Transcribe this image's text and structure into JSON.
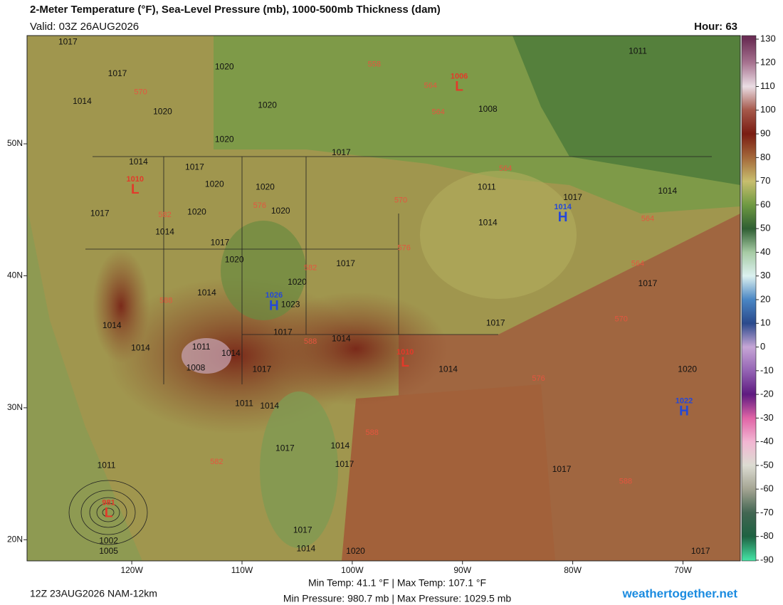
{
  "header": {
    "title": "2-Meter Temperature (°F), Sea-Level Pressure (mb), 1000-500mb Thickness (dam)",
    "valid": "Valid: 03Z 26AUG2026",
    "hour": "Hour: 63"
  },
  "map": {
    "xlim": [
      -129.5,
      -64.8
    ],
    "ylim": [
      18.4,
      58.2
    ],
    "xticks": [
      {
        "value": -120,
        "label": "120W"
      },
      {
        "value": -110,
        "label": "110W"
      },
      {
        "value": -100,
        "label": "100W"
      },
      {
        "value": -90,
        "label": "90W"
      },
      {
        "value": -80,
        "label": "80W"
      },
      {
        "value": -70,
        "label": "70W"
      }
    ],
    "yticks": [
      {
        "value": 50,
        "label": "50N"
      },
      {
        "value": 40,
        "label": "40N"
      },
      {
        "value": 30,
        "label": "30N"
      },
      {
        "value": 20,
        "label": "20N"
      }
    ],
    "centers": [
      {
        "type": "L",
        "value": 1010,
        "lon": -119.7,
        "lat": 46.6,
        "color": "#e23a2a"
      },
      {
        "type": "L",
        "value": 1006,
        "lon": -90.3,
        "lat": 54.4,
        "color": "#e23a2a"
      },
      {
        "type": "H",
        "value": 1014,
        "lon": -80.9,
        "lat": 44.5,
        "color": "#2448d8"
      },
      {
        "type": "H",
        "value": 1026,
        "lon": -107.1,
        "lat": 37.8,
        "color": "#2448d8"
      },
      {
        "type": "L",
        "value": 1010,
        "lon": -95.2,
        "lat": 33.5,
        "color": "#e23a2a"
      },
      {
        "type": "H",
        "value": 1022,
        "lon": -69.9,
        "lat": 29.8,
        "color": "#2448d8"
      },
      {
        "type": "L",
        "value": 981,
        "lon": -122.1,
        "lat": 22.1,
        "color": "#e23a2a"
      }
    ],
    "isobar_labels": [
      {
        "label": 1017,
        "lon": -125.8,
        "lat": 57.7
      },
      {
        "label": 1017,
        "lon": -121.3,
        "lat": 55.3
      },
      {
        "label": 1014,
        "lon": -124.5,
        "lat": 53.2
      },
      {
        "label": 1020,
        "lon": -117.2,
        "lat": 52.4
      },
      {
        "label": 1020,
        "lon": -111.6,
        "lat": 55.8
      },
      {
        "label": 1020,
        "lon": -107.7,
        "lat": 52.9
      },
      {
        "label": 1020,
        "lon": -111.6,
        "lat": 50.3
      },
      {
        "label": 1017,
        "lon": -101.0,
        "lat": 49.3
      },
      {
        "label": 1014,
        "lon": -119.4,
        "lat": 48.6
      },
      {
        "label": 1017,
        "lon": -114.3,
        "lat": 48.2
      },
      {
        "label": 1020,
        "lon": -112.5,
        "lat": 46.9
      },
      {
        "label": 1020,
        "lon": -107.9,
        "lat": 46.7
      },
      {
        "label": 1020,
        "lon": -106.5,
        "lat": 44.9
      },
      {
        "label": 1017,
        "lon": -122.9,
        "lat": 44.7
      },
      {
        "label": 1020,
        "lon": -114.1,
        "lat": 44.8
      },
      {
        "label": 1014,
        "lon": -117.0,
        "lat": 43.3
      },
      {
        "label": 1017,
        "lon": -112.0,
        "lat": 42.5
      },
      {
        "label": 1020,
        "lon": -110.7,
        "lat": 41.2
      },
      {
        "label": 1017,
        "lon": -100.6,
        "lat": 40.9
      },
      {
        "label": 1014,
        "lon": -113.2,
        "lat": 38.7
      },
      {
        "label": 1020,
        "lon": -105.0,
        "lat": 39.5
      },
      {
        "label": 1023,
        "lon": -105.6,
        "lat": 37.8
      },
      {
        "label": 1014,
        "lon": -121.8,
        "lat": 36.2
      },
      {
        "label": 1017,
        "lon": -106.3,
        "lat": 35.7
      },
      {
        "label": 1014,
        "lon": -119.2,
        "lat": 34.5
      },
      {
        "label": 1011,
        "lon": -113.7,
        "lat": 34.6
      },
      {
        "label": 1008,
        "lon": -114.2,
        "lat": 33.0
      },
      {
        "label": 1014,
        "lon": -111.0,
        "lat": 34.1
      },
      {
        "label": 1017,
        "lon": -108.2,
        "lat": 32.9
      },
      {
        "label": 1014,
        "lon": -101.0,
        "lat": 35.2
      },
      {
        "label": 1014,
        "lon": -91.3,
        "lat": 32.9
      },
      {
        "label": 1017,
        "lon": -87.0,
        "lat": 36.4
      },
      {
        "label": 1008,
        "lon": -87.7,
        "lat": 52.6
      },
      {
        "label": 1011,
        "lon": -87.8,
        "lat": 46.7
      },
      {
        "label": 1014,
        "lon": -87.7,
        "lat": 44.0
      },
      {
        "label": 1017,
        "lon": -80.0,
        "lat": 45.9
      },
      {
        "label": 1011,
        "lon": -74.1,
        "lat": 57.0
      },
      {
        "label": 1014,
        "lon": -71.4,
        "lat": 46.4
      },
      {
        "label": 1017,
        "lon": -73.2,
        "lat": 39.4
      },
      {
        "label": 1020,
        "lon": -69.6,
        "lat": 32.9
      },
      {
        "label": 1011,
        "lon": -109.8,
        "lat": 30.3
      },
      {
        "label": 1014,
        "lon": -107.5,
        "lat": 30.1
      },
      {
        "label": 1017,
        "lon": -106.1,
        "lat": 26.9
      },
      {
        "label": 1014,
        "lon": -101.1,
        "lat": 27.1
      },
      {
        "label": 1017,
        "lon": -100.7,
        "lat": 25.7
      },
      {
        "label": 1011,
        "lon": -122.3,
        "lat": 25.6
      },
      {
        "label": 1002,
        "lon": -122.1,
        "lat": 19.9
      },
      {
        "label": 1005,
        "lon": -122.1,
        "lat": 19.1
      },
      {
        "label": 1017,
        "lon": -104.5,
        "lat": 20.7
      },
      {
        "label": 1014,
        "lon": -104.2,
        "lat": 19.3
      },
      {
        "label": 1020,
        "lon": -99.7,
        "lat": 19.1
      },
      {
        "label": 1017,
        "lon": -81.0,
        "lat": 25.3
      },
      {
        "label": 1017,
        "lon": -68.4,
        "lat": 19.1
      }
    ],
    "thickness_labels": [
      {
        "label": 558,
        "lon": -98.0,
        "lat": 56.0
      },
      {
        "label": 570,
        "lon": -119.2,
        "lat": 53.9
      },
      {
        "label": 564,
        "lon": -92.9,
        "lat": 54.4
      },
      {
        "label": 564,
        "lon": -92.2,
        "lat": 52.4
      },
      {
        "label": 564,
        "lon": -86.1,
        "lat": 48.1
      },
      {
        "label": 570,
        "lon": -95.6,
        "lat": 45.7
      },
      {
        "label": 576,
        "lon": -108.4,
        "lat": 45.3
      },
      {
        "label": 582,
        "lon": -117.0,
        "lat": 44.6
      },
      {
        "label": 576,
        "lon": -95.3,
        "lat": 42.1
      },
      {
        "label": 582,
        "lon": -103.8,
        "lat": 40.6
      },
      {
        "label": 588,
        "lon": -116.9,
        "lat": 38.1
      },
      {
        "label": 588,
        "lon": -103.8,
        "lat": 35.0
      },
      {
        "label": 588,
        "lon": -98.2,
        "lat": 28.1
      },
      {
        "label": 582,
        "lon": -112.3,
        "lat": 25.9
      },
      {
        "label": 576,
        "lon": -83.1,
        "lat": 32.2
      },
      {
        "label": 570,
        "lon": -75.6,
        "lat": 36.7
      },
      {
        "label": 564,
        "lon": -73.2,
        "lat": 44.3
      },
      {
        "label": 564,
        "lon": -74.1,
        "lat": 40.9
      },
      {
        "label": 588,
        "lon": -75.2,
        "lat": 24.4
      }
    ]
  },
  "colorbar": {
    "lim": [
      -90.3,
      131.5
    ],
    "ticks": [
      130,
      120,
      110,
      100,
      90,
      80,
      70,
      60,
      50,
      40,
      30,
      20,
      10,
      0,
      -10,
      -20,
      -30,
      -40,
      -50,
      -60,
      -70,
      -80,
      -90
    ],
    "colors": [
      "#6b2e55",
      "#a77390",
      "#eadde4",
      "#a5584a",
      "#7a1c12",
      "#a4683a",
      "#c8be6e",
      "#6f9a42",
      "#2f5f33",
      "#a6cba4",
      "#dcf1f0",
      "#4a86c4",
      "#2a4a8c",
      "#c6a6d6",
      "#9464b4",
      "#5e1a80",
      "#e064a6",
      "#f2b6d2",
      "#dcdcd2",
      "#a4a492",
      "#426652",
      "#1e6242",
      "#44e2a4"
    ]
  },
  "footer": {
    "run": "12Z 23AUG2026 NAM-12km",
    "temps": "Min Temp: 41.1 °F | Max Temp: 107.1 °F",
    "pressures": "Min Pressure: 980.7 mb | Max Pressure: 1029.5 mb",
    "site": "weathertogether.net"
  }
}
